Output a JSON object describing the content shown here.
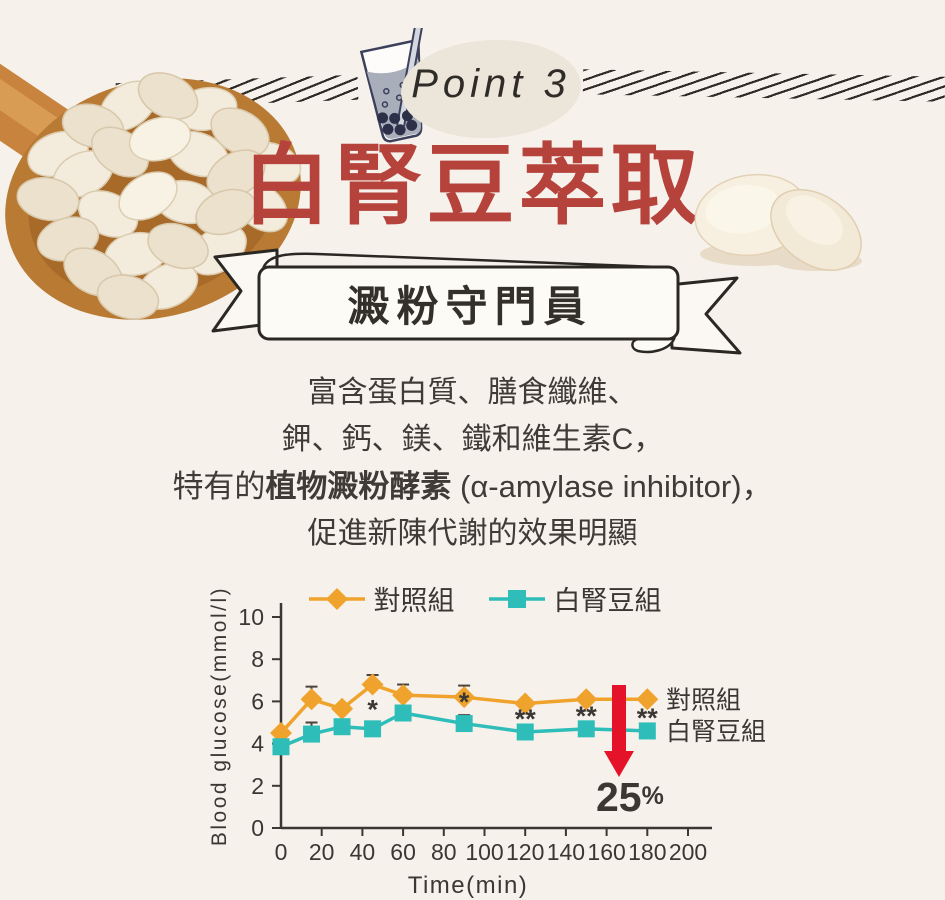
{
  "header": {
    "point_label": "Point 3",
    "title": "白腎豆萃取",
    "ribbon_text": "澱粉守門員"
  },
  "body": {
    "line1": "富含蛋白質、膳食纖維、",
    "line2": "鉀、鈣、鎂、鐵和維生素C，",
    "line3_prefix": "特有的",
    "line3_bold": "植物澱粉酵素",
    "line3_suffix": " (α-amylase inhibitor)，",
    "line4": "促進新陳代謝的效果明顯"
  },
  "colors": {
    "background": "#f6f1eb",
    "title_red": "#b5433c",
    "control_orange": "#F0A32C",
    "bean_teal": "#2EBDB8",
    "arrow_red": "#E5132A",
    "text_dark": "#3b3733"
  },
  "chart_data": {
    "type": "line",
    "xlabel": "Time(min)",
    "ylabel": "Blood glucose(mmol/l)",
    "xlim": [
      0,
      210
    ],
    "ylim": [
      0,
      10
    ],
    "x_ticks": [
      0,
      20,
      40,
      60,
      80,
      100,
      120,
      140,
      160,
      180,
      200
    ],
    "y_ticks": [
      0,
      2,
      4,
      6,
      8,
      10
    ],
    "grid": false,
    "legend_position": "top",
    "x": [
      0,
      15,
      30,
      45,
      60,
      90,
      120,
      150,
      180
    ],
    "series": [
      {
        "name": "對照組",
        "marker": "diamond",
        "color": "#F0A32C",
        "values": [
          4.5,
          6.1,
          5.65,
          6.8,
          6.3,
          6.2,
          5.9,
          6.1,
          6.1
        ],
        "err_upper": [
          0,
          0.6,
          0,
          0.45,
          0.5,
          0.55,
          0,
          0,
          0
        ]
      },
      {
        "name": "白腎豆組",
        "marker": "square",
        "color": "#2EBDB8",
        "values": [
          3.85,
          4.45,
          4.8,
          4.7,
          5.45,
          4.95,
          4.55,
          4.7,
          4.6
        ],
        "err_upper": [
          0,
          0.55,
          0.3,
          0.3,
          0.25,
          0.4,
          0,
          0,
          0
        ]
      }
    ],
    "significance": [
      {
        "x": 45,
        "label": "*"
      },
      {
        "x": 90,
        "label": "*"
      },
      {
        "x": 120,
        "label": "**"
      },
      {
        "x": 150,
        "label": "**"
      },
      {
        "x": 180,
        "label": "**"
      }
    ],
    "end_labels": [
      {
        "series": 0,
        "text": "對照組"
      },
      {
        "series": 1,
        "text": "白腎豆組"
      }
    ],
    "arrow_annotation": {
      "label": "25",
      "unit": "%",
      "color": "#E5132A"
    }
  }
}
